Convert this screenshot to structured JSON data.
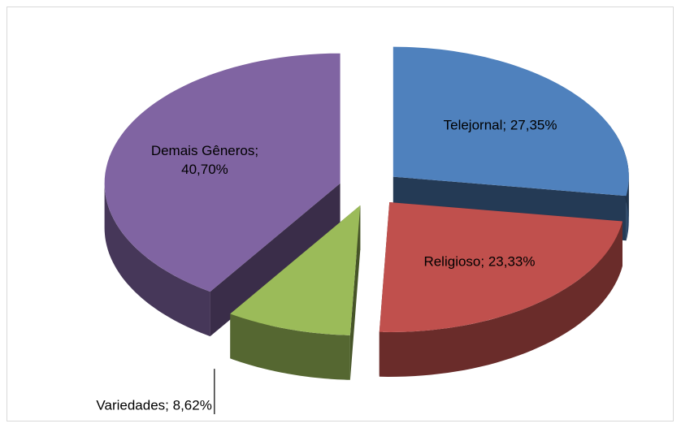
{
  "chart_data": {
    "type": "pie3d",
    "values": [
      27.35,
      23.33,
      8.62,
      40.7
    ],
    "value_labels": [
      "Telejornal; 27,35%",
      "Religioso; 23,33%",
      "Variedades; 8,62%",
      "Demais Gêneros; 40,70%"
    ],
    "colors": [
      "#4f81bd",
      "#c0504d",
      "#9bbb59",
      "#8064a2"
    ]
  }
}
